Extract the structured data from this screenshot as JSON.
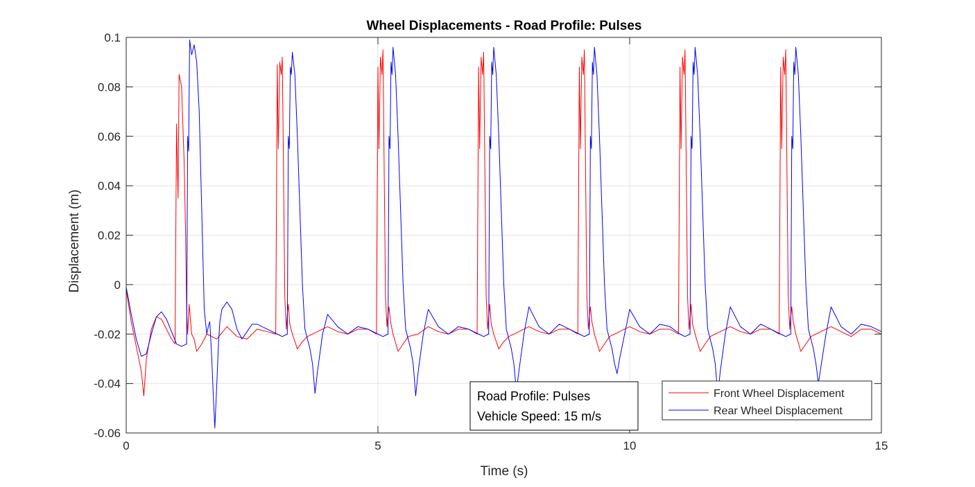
{
  "chart_data": {
    "type": "line",
    "title": "Wheel Displacements - Road Profile: Pulses",
    "xlabel": "Time (s)",
    "ylabel": "Displacement (m)",
    "xlim": [
      0,
      15
    ],
    "ylim": [
      -0.06,
      0.1
    ],
    "xticks": [
      0,
      5,
      10,
      15
    ],
    "yticks": [
      -0.06,
      -0.04,
      -0.02,
      0,
      0.02,
      0.04,
      0.06,
      0.08,
      0.1
    ],
    "xtick_labels": [
      "0",
      "5",
      "10",
      "15"
    ],
    "ytick_labels": [
      "-0.06",
      "-0.04",
      "-0.02",
      "0",
      "0.02",
      "0.04",
      "0.06",
      "0.08",
      "0.1"
    ],
    "grid": true,
    "legend_position": "bottom-right",
    "annotation_lines": [
      "Road Profile: Pulses",
      "Vehicle Speed: 15 m/s"
    ],
    "series": [
      {
        "name": "Front Wheel Displacement",
        "color": "#ff0000",
        "pulse_starts": [
          1.0,
          3.0,
          5.0,
          7.0,
          9.0,
          11.0,
          13.0
        ],
        "x": [
          0,
          0.1,
          0.2,
          0.3,
          0.35,
          0.4,
          0.5,
          0.6,
          0.7,
          0.8,
          0.9,
          0.97,
          1.0,
          1.03,
          1.05,
          1.1,
          1.15,
          1.18,
          1.2,
          1.22,
          1.25,
          1.28,
          1.3,
          1.35,
          1.4,
          1.5,
          1.6,
          1.8,
          2.0,
          2.2,
          2.4,
          2.6,
          2.8,
          2.97,
          3.0,
          3.02,
          3.05,
          3.08,
          3.1,
          3.12,
          3.15,
          3.18,
          3.2,
          3.22,
          3.25,
          3.3,
          3.4,
          3.5,
          3.6,
          3.8,
          4.0,
          4.2,
          4.4,
          4.6,
          4.8,
          4.97,
          5.0,
          5.02,
          5.05,
          5.08,
          5.1,
          5.12,
          5.15,
          5.18,
          5.2,
          5.22,
          5.25,
          5.3,
          5.4,
          5.5,
          5.6,
          5.8,
          6.0,
          6.2,
          6.4,
          6.6,
          6.8,
          6.97,
          7.0,
          7.02,
          7.05,
          7.08,
          7.1,
          7.12,
          7.15,
          7.18,
          7.2,
          7.22,
          7.25,
          7.3,
          7.4,
          7.5,
          7.6,
          7.8,
          8.0,
          8.2,
          8.4,
          8.6,
          8.8,
          8.97,
          9.0,
          9.02,
          9.05,
          9.08,
          9.1,
          9.12,
          9.15,
          9.18,
          9.2,
          9.22,
          9.25,
          9.3,
          9.4,
          9.5,
          9.6,
          9.8,
          10.0,
          10.2,
          10.4,
          10.6,
          10.8,
          10.97,
          11.0,
          11.02,
          11.05,
          11.08,
          11.1,
          11.12,
          11.15,
          11.18,
          11.2,
          11.22,
          11.25,
          11.3,
          11.4,
          11.5,
          11.6,
          11.8,
          12.0,
          12.2,
          12.4,
          12.6,
          12.8,
          12.97,
          13.0,
          13.02,
          13.05,
          13.08,
          13.1,
          13.12,
          13.15,
          13.18,
          13.2,
          13.22,
          13.25,
          13.3,
          13.4,
          13.5,
          13.6,
          13.8,
          14.0,
          14.2,
          14.4,
          14.6,
          14.8,
          15.0
        ],
        "y": [
          -0.002,
          -0.015,
          -0.025,
          -0.035,
          -0.045,
          -0.03,
          -0.018,
          -0.013,
          -0.014,
          -0.018,
          -0.022,
          -0.024,
          0.065,
          0.035,
          0.085,
          0.08,
          0.05,
          0.02,
          -0.01,
          -0.02,
          -0.008,
          -0.015,
          -0.02,
          -0.022,
          -0.027,
          -0.024,
          -0.02,
          -0.022,
          -0.017,
          -0.021,
          -0.022,
          -0.018,
          -0.019,
          -0.02,
          0.089,
          0.055,
          0.09,
          0.085,
          0.092,
          0.055,
          -0.005,
          -0.018,
          -0.012,
          -0.008,
          -0.016,
          -0.02,
          -0.026,
          -0.023,
          -0.021,
          -0.019,
          -0.017,
          -0.019,
          -0.02,
          -0.018,
          -0.018,
          -0.02,
          0.088,
          0.055,
          0.092,
          0.085,
          0.095,
          0.055,
          -0.005,
          -0.017,
          -0.012,
          -0.009,
          -0.015,
          -0.02,
          -0.027,
          -0.024,
          -0.021,
          -0.02,
          -0.017,
          -0.019,
          -0.02,
          -0.018,
          -0.018,
          -0.02,
          0.088,
          0.055,
          0.092,
          0.085,
          0.094,
          0.055,
          -0.005,
          -0.018,
          -0.013,
          -0.008,
          -0.016,
          -0.02,
          -0.026,
          -0.023,
          -0.021,
          -0.019,
          -0.017,
          -0.019,
          -0.02,
          -0.018,
          -0.018,
          -0.02,
          0.088,
          0.055,
          0.092,
          0.085,
          0.095,
          0.055,
          -0.005,
          -0.018,
          -0.013,
          -0.009,
          -0.015,
          -0.02,
          -0.027,
          -0.024,
          -0.021,
          -0.019,
          -0.017,
          -0.019,
          -0.02,
          -0.018,
          -0.018,
          -0.02,
          0.088,
          0.055,
          0.092,
          0.085,
          0.095,
          0.055,
          -0.005,
          -0.018,
          -0.013,
          -0.008,
          -0.016,
          -0.02,
          -0.027,
          -0.024,
          -0.021,
          -0.019,
          -0.017,
          -0.019,
          -0.02,
          -0.018,
          -0.018,
          -0.02,
          0.088,
          0.055,
          0.092,
          0.085,
          0.095,
          0.055,
          -0.005,
          -0.018,
          -0.013,
          -0.009,
          -0.015,
          -0.02,
          -0.027,
          -0.024,
          -0.021,
          -0.019,
          -0.017,
          -0.019,
          -0.021,
          -0.018,
          -0.018,
          -0.02
        ]
      },
      {
        "name": "Rear Wheel Displacement",
        "color": "#0000ff",
        "pulse_starts": [
          1.24,
          3.24,
          5.24,
          7.24,
          9.24,
          11.24,
          13.24
        ],
        "x": [
          0,
          0.1,
          0.2,
          0.3,
          0.4,
          0.5,
          0.6,
          0.7,
          0.8,
          0.9,
          1.0,
          1.1,
          1.2,
          1.22,
          1.24,
          1.26,
          1.28,
          1.3,
          1.35,
          1.4,
          1.45,
          1.5,
          1.55,
          1.6,
          1.63,
          1.66,
          1.7,
          1.73,
          1.76,
          1.8,
          1.83,
          1.86,
          1.9,
          2.0,
          2.1,
          2.2,
          2.3,
          2.4,
          2.5,
          2.6,
          2.8,
          3.0,
          3.1,
          3.2,
          3.22,
          3.24,
          3.26,
          3.28,
          3.3,
          3.35,
          3.4,
          3.45,
          3.5,
          3.55,
          3.6,
          3.65,
          3.7,
          3.75,
          3.8,
          3.9,
          4.0,
          4.2,
          4.4,
          4.6,
          4.8,
          5.0,
          5.1,
          5.2,
          5.22,
          5.24,
          5.26,
          5.28,
          5.3,
          5.35,
          5.4,
          5.45,
          5.5,
          5.55,
          5.6,
          5.65,
          5.7,
          5.75,
          5.8,
          5.9,
          6.0,
          6.2,
          6.4,
          6.6,
          6.8,
          7.0,
          7.1,
          7.2,
          7.22,
          7.24,
          7.26,
          7.28,
          7.3,
          7.35,
          7.4,
          7.45,
          7.5,
          7.55,
          7.6,
          7.65,
          7.7,
          7.75,
          7.8,
          7.9,
          8.0,
          8.2,
          8.4,
          8.6,
          8.8,
          9.0,
          9.1,
          9.2,
          9.22,
          9.24,
          9.26,
          9.28,
          9.3,
          9.35,
          9.4,
          9.45,
          9.5,
          9.55,
          9.6,
          9.65,
          9.7,
          9.75,
          9.8,
          9.9,
          10.0,
          10.2,
          10.4,
          10.6,
          10.8,
          11.0,
          11.1,
          11.2,
          11.22,
          11.24,
          11.26,
          11.28,
          11.3,
          11.35,
          11.4,
          11.45,
          11.5,
          11.55,
          11.6,
          11.65,
          11.7,
          11.75,
          11.8,
          11.9,
          12.0,
          12.2,
          12.4,
          12.6,
          12.8,
          13.0,
          13.1,
          13.2,
          13.22,
          13.24,
          13.26,
          13.28,
          13.3,
          13.35,
          13.4,
          13.45,
          13.5,
          13.55,
          13.6,
          13.65,
          13.7,
          13.75,
          13.8,
          13.9,
          14.0,
          14.2,
          14.4,
          14.6,
          14.8,
          15.0
        ],
        "y": [
          -0.001,
          -0.012,
          -0.022,
          -0.029,
          -0.028,
          -0.02,
          -0.013,
          -0.011,
          -0.014,
          -0.019,
          -0.024,
          -0.025,
          -0.024,
          0.06,
          0.054,
          0.099,
          0.096,
          0.093,
          0.097,
          0.09,
          0.07,
          0.03,
          -0.01,
          -0.02,
          -0.017,
          -0.015,
          -0.03,
          -0.045,
          -0.058,
          -0.04,
          -0.025,
          -0.015,
          -0.01,
          -0.007,
          -0.01,
          -0.018,
          -0.022,
          -0.019,
          -0.016,
          -0.016,
          -0.018,
          -0.02,
          -0.021,
          -0.02,
          0.06,
          0.055,
          0.088,
          0.085,
          0.094,
          0.085,
          0.06,
          0.03,
          0.0,
          -0.018,
          -0.022,
          -0.026,
          -0.032,
          -0.044,
          -0.035,
          -0.02,
          -0.012,
          -0.017,
          -0.02,
          -0.017,
          -0.018,
          -0.02,
          -0.021,
          -0.02,
          0.06,
          0.055,
          0.09,
          0.085,
          0.096,
          0.085,
          0.06,
          0.03,
          0.0,
          -0.018,
          -0.022,
          -0.026,
          -0.032,
          -0.045,
          -0.035,
          -0.02,
          -0.01,
          -0.017,
          -0.02,
          -0.017,
          -0.018,
          -0.02,
          -0.021,
          -0.02,
          0.06,
          0.055,
          0.09,
          0.085,
          0.096,
          0.085,
          0.06,
          0.03,
          0.0,
          -0.018,
          -0.022,
          -0.026,
          -0.032,
          -0.043,
          -0.035,
          -0.02,
          -0.009,
          -0.017,
          -0.02,
          -0.016,
          -0.018,
          -0.02,
          -0.021,
          -0.02,
          0.06,
          0.055,
          0.09,
          0.085,
          0.096,
          0.085,
          0.06,
          0.03,
          0.0,
          -0.018,
          -0.022,
          -0.026,
          -0.032,
          -0.036,
          -0.03,
          -0.02,
          -0.01,
          -0.017,
          -0.02,
          -0.016,
          -0.017,
          -0.02,
          -0.021,
          -0.02,
          0.06,
          0.055,
          0.09,
          0.085,
          0.096,
          0.085,
          0.06,
          0.03,
          0.0,
          -0.018,
          -0.022,
          -0.026,
          -0.032,
          -0.045,
          -0.035,
          -0.02,
          -0.009,
          -0.017,
          -0.02,
          -0.016,
          -0.018,
          -0.02,
          -0.021,
          -0.02,
          0.06,
          0.055,
          0.09,
          0.085,
          0.096,
          0.085,
          0.06,
          0.03,
          0.0,
          -0.018,
          -0.022,
          -0.026,
          -0.032,
          -0.04,
          -0.033,
          -0.02,
          -0.009,
          -0.017,
          -0.02,
          -0.016,
          -0.017,
          -0.019
        ]
      }
    ]
  }
}
